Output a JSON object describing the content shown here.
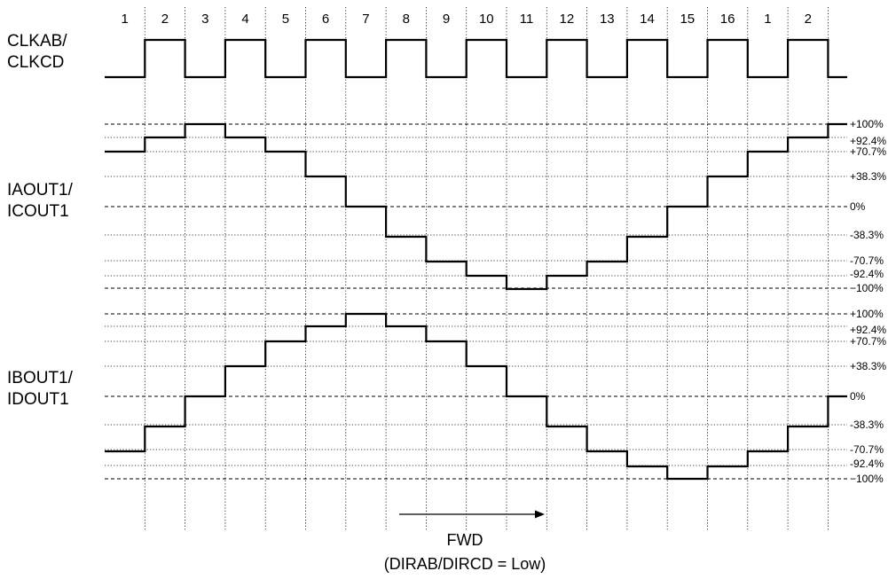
{
  "step_numbers": [
    "1",
    "2",
    "3",
    "4",
    "5",
    "6",
    "7",
    "8",
    "9",
    "10",
    "11",
    "12",
    "13",
    "14",
    "15",
    "16",
    "1",
    "2"
  ],
  "signals": {
    "clk": {
      "label_line1": "CLKAB/",
      "label_line2": "CLKCD"
    },
    "a": {
      "label_line1": "IAOUT1/",
      "label_line2": "ICOUT1",
      "levels": [
        "+100%",
        "+92.4%",
        "+70.7%",
        "+38.3%",
        "0%",
        "-38.3%",
        "-70.7%",
        "-92.4%",
        "−100%"
      ],
      "step_values": [
        70.7,
        92.4,
        100,
        92.4,
        70.7,
        38.3,
        0,
        -38.3,
        -70.7,
        -92.4,
        -100,
        -92.4,
        -70.7,
        -38.3,
        0,
        38.3,
        70.7,
        92.4,
        100
      ]
    },
    "b": {
      "label_line1": "IBOUT1/",
      "label_line2": "IDOUT1",
      "levels": [
        "+100%",
        "+92.4%",
        "+70.7%",
        "+38.3%",
        "0%",
        "-38.3%",
        "-70.7%",
        "-92.4%",
        "−100%"
      ],
      "step_values": [
        -70.7,
        -38.3,
        0,
        38.3,
        70.7,
        92.4,
        100,
        92.4,
        70.7,
        38.3,
        0,
        -38.3,
        -70.7,
        -92.4,
        -100,
        -92.4,
        -70.7,
        -38.3,
        0
      ]
    }
  },
  "direction": {
    "arrow_label": "FWD",
    "condition": "(DIRAB/DIRCD = Low)"
  }
}
